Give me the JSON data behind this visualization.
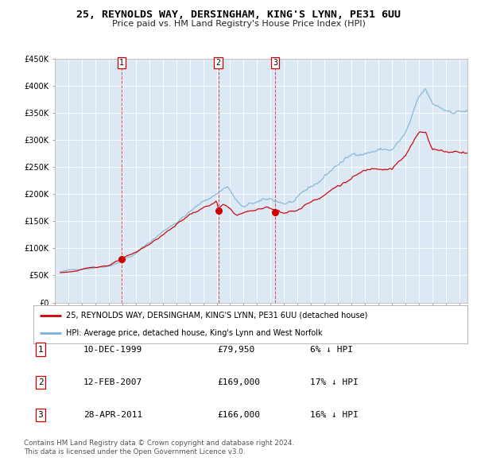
{
  "title": "25, REYNOLDS WAY, DERSINGHAM, KING'S LYNN, PE31 6UU",
  "subtitle": "Price paid vs. HM Land Registry's House Price Index (HPI)",
  "legend_red": "25, REYNOLDS WAY, DERSINGHAM, KING'S LYNN, PE31 6UU (detached house)",
  "legend_blue": "HPI: Average price, detached house, King's Lynn and West Norfolk",
  "footer1": "Contains HM Land Registry data © Crown copyright and database right 2024.",
  "footer2": "This data is licensed under the Open Government Licence v3.0.",
  "transactions": [
    {
      "num": 1,
      "date": "10-DEC-1999",
      "price": 79950,
      "price_str": "£79,950",
      "pct": "6%",
      "year": 1999.95
    },
    {
      "num": 2,
      "date": "12-FEB-2007",
      "price": 169000,
      "price_str": "£169,000",
      "pct": "17%",
      "year": 2007.12
    },
    {
      "num": 3,
      "date": "28-APR-2011",
      "price": 166000,
      "price_str": "£166,000",
      "pct": "16%",
      "year": 2011.32
    }
  ],
  "ylim": [
    0,
    450000
  ],
  "yticks": [
    0,
    50000,
    100000,
    150000,
    200000,
    250000,
    300000,
    350000,
    400000,
    450000
  ],
  "ytick_labels": [
    "£0",
    "£50K",
    "£100K",
    "£150K",
    "£200K",
    "£250K",
    "£300K",
    "£350K",
    "£400K",
    "£450K"
  ],
  "start_year": 1995.4,
  "end_year": 2025.6,
  "background_color": "#dce9f5",
  "red_color": "#cc0000",
  "blue_color": "#7ab0d4",
  "grid_color": "#ffffff"
}
